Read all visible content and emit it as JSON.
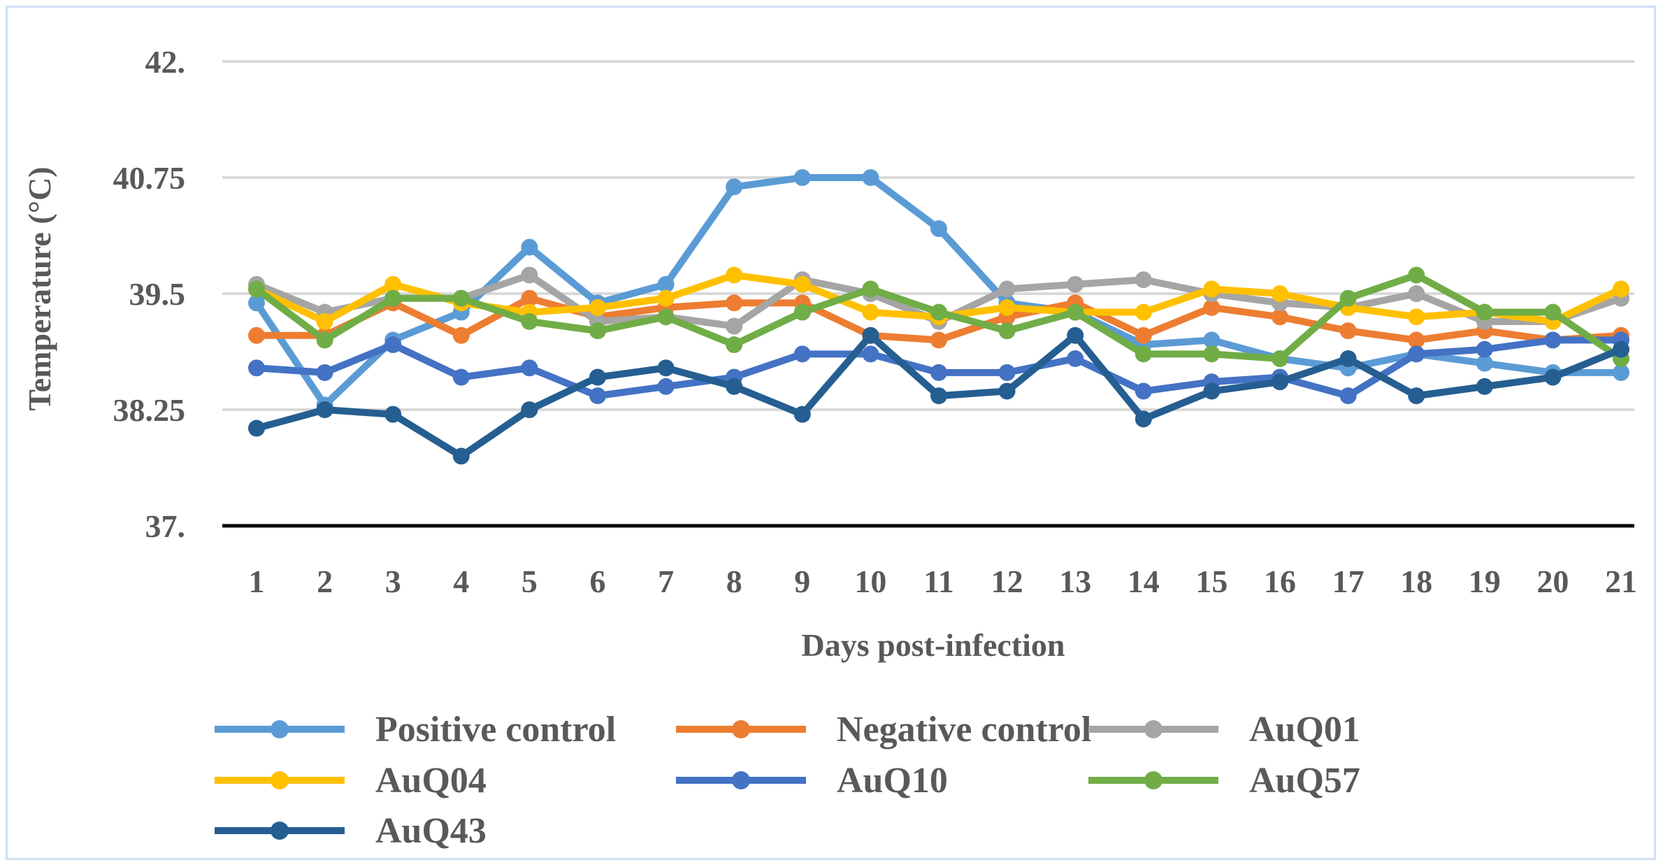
{
  "chart_data": {
    "type": "line",
    "title": "",
    "xlabel": "Days post-infection",
    "ylabel": "Temperature (°C)",
    "ylim": [
      37,
      42
    ],
    "y_ticks": [
      37,
      38.25,
      39.5,
      40.75,
      42
    ],
    "y_tick_labels": [
      "37.",
      "38.25",
      "39.5",
      "40.75",
      "42."
    ],
    "grid": true,
    "legend_position": "bottom",
    "x": [
      1,
      2,
      3,
      4,
      5,
      6,
      7,
      8,
      9,
      10,
      11,
      12,
      13,
      14,
      15,
      16,
      17,
      18,
      19,
      20,
      21
    ],
    "x_tick_labels": [
      "1",
      "2",
      "3",
      "4",
      "5",
      "6",
      "7",
      "8",
      "9",
      "10",
      "11",
      "12",
      "13",
      "14",
      "15",
      "16",
      "17",
      "18",
      "19",
      "20",
      "21"
    ],
    "series": [
      {
        "name": "Positive control",
        "color": "#5B9BD5",
        "values": [
          39.4,
          38.3,
          39.0,
          39.3,
          40.0,
          39.4,
          39.6,
          40.65,
          40.75,
          40.75,
          40.2,
          39.4,
          39.3,
          38.95,
          39.0,
          38.8,
          38.7,
          38.85,
          38.75,
          38.65,
          38.65
        ]
      },
      {
        "name": "Negative control",
        "color": "#ED7D31",
        "values": [
          39.05,
          39.05,
          39.4,
          39.05,
          39.45,
          39.25,
          39.35,
          39.4,
          39.4,
          39.05,
          39.0,
          39.25,
          39.4,
          39.05,
          39.35,
          39.25,
          39.1,
          39.0,
          39.1,
          39.0,
          39.05
        ]
      },
      {
        "name": "AuQ01",
        "color": "#A5A5A5",
        "values": [
          39.6,
          39.3,
          39.45,
          39.45,
          39.7,
          39.2,
          39.25,
          39.15,
          39.65,
          39.5,
          39.2,
          39.55,
          39.6,
          39.65,
          39.5,
          39.4,
          39.35,
          39.5,
          39.2,
          39.2,
          39.45
        ]
      },
      {
        "name": "AuQ04",
        "color": "#FFC000",
        "values": [
          39.55,
          39.2,
          39.6,
          39.4,
          39.3,
          39.35,
          39.45,
          39.7,
          39.6,
          39.3,
          39.25,
          39.35,
          39.3,
          39.3,
          39.55,
          39.5,
          39.35,
          39.25,
          39.3,
          39.2,
          39.55
        ]
      },
      {
        "name": "AuQ10",
        "color": "#4472C4",
        "values": [
          38.7,
          38.65,
          38.95,
          38.6,
          38.7,
          38.4,
          38.5,
          38.6,
          38.85,
          38.85,
          38.65,
          38.65,
          38.8,
          38.45,
          38.55,
          38.6,
          38.4,
          38.85,
          38.9,
          39.0,
          39.0
        ]
      },
      {
        "name": "AuQ57",
        "color": "#70AD47",
        "values": [
          39.55,
          39.0,
          39.45,
          39.45,
          39.2,
          39.1,
          39.25,
          38.95,
          39.3,
          39.55,
          39.3,
          39.1,
          39.3,
          38.85,
          38.85,
          38.8,
          39.45,
          39.7,
          39.3,
          39.3,
          38.8
        ]
      },
      {
        "name": "AuQ43",
        "color": "#255E91",
        "values": [
          38.05,
          38.25,
          38.2,
          37.75,
          38.25,
          38.6,
          38.7,
          38.5,
          38.2,
          39.05,
          38.4,
          38.45,
          39.05,
          38.15,
          38.45,
          38.55,
          38.8,
          38.4,
          38.5,
          38.6,
          38.9
        ]
      }
    ]
  }
}
